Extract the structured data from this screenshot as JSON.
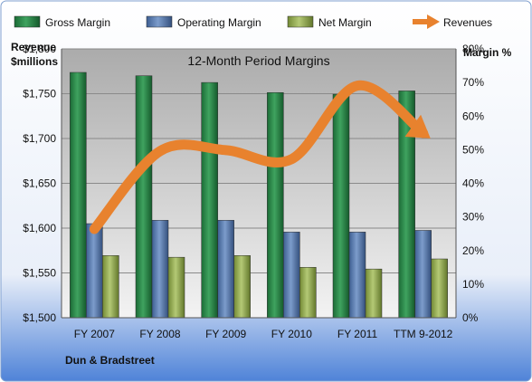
{
  "chart_data": {
    "type": "bar",
    "title": "12-Month Period Margins",
    "company": "Dun & Bradstreet",
    "y_left_label": [
      "Revenue",
      "$millions"
    ],
    "y_right_label": "Margin %",
    "categories": [
      "FY 2007",
      "FY 2008",
      "FY 2009",
      "FY 2010",
      "FY 2011",
      "TTM 9-2012"
    ],
    "y_left_ticks": [
      "$1,500",
      "$1,550",
      "$1,600",
      "$1,650",
      "$1,700",
      "$1,750",
      "$1,800"
    ],
    "y_right_ticks": [
      "0%",
      "10%",
      "20%",
      "30%",
      "40%",
      "50%",
      "60%",
      "70%",
      "80%"
    ],
    "ylim_left": [
      1500,
      1800
    ],
    "ylim_right": [
      0,
      80
    ],
    "legend_position": "top",
    "grid": true,
    "series": [
      {
        "name": "Gross Margin",
        "axis": "right",
        "color": "#1e7a3e",
        "values": [
          73,
          72,
          70,
          67,
          66.5,
          67.5
        ]
      },
      {
        "name": "Operating Margin",
        "axis": "right",
        "color": "#4a6fa5",
        "values": [
          28,
          29,
          29,
          25.5,
          25.5,
          26
        ]
      },
      {
        "name": "Net Margin",
        "axis": "right",
        "color": "#8fa84a",
        "values": [
          18.5,
          18,
          18.5,
          15,
          14.5,
          17.5
        ]
      },
      {
        "name": "Revenues",
        "axis": "left",
        "type": "line",
        "color": "#e8822e",
        "values": [
          1599,
          1686,
          1687,
          1677,
          1759,
          1706
        ]
      }
    ]
  }
}
